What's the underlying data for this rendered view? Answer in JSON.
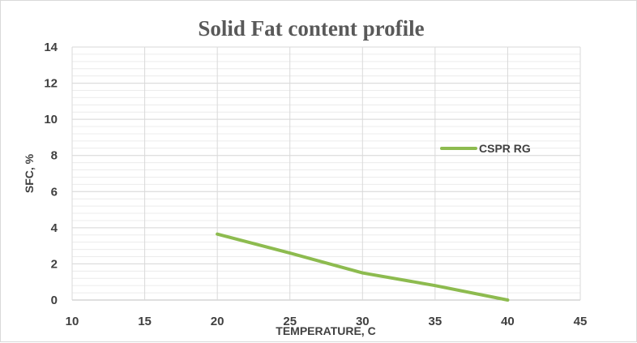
{
  "chart_data": {
    "type": "line",
    "title": "Solid Fat content profile",
    "xlabel": "TEMPERATURE, C",
    "ylabel": "SFC, %",
    "xlim": [
      10,
      45
    ],
    "ylim": [
      0,
      14
    ],
    "x_ticks": [
      10,
      15,
      20,
      25,
      30,
      35,
      40,
      45
    ],
    "y_ticks": [
      0,
      2,
      4,
      6,
      8,
      10,
      12,
      14
    ],
    "grid": true,
    "legend_position": "right",
    "series": [
      {
        "name": "CSPR RG",
        "color": "#8dbb4f",
        "x": [
          20,
          25,
          30,
          35,
          40
        ],
        "y": [
          3.65,
          2.6,
          1.5,
          0.8,
          0.0
        ]
      }
    ]
  }
}
